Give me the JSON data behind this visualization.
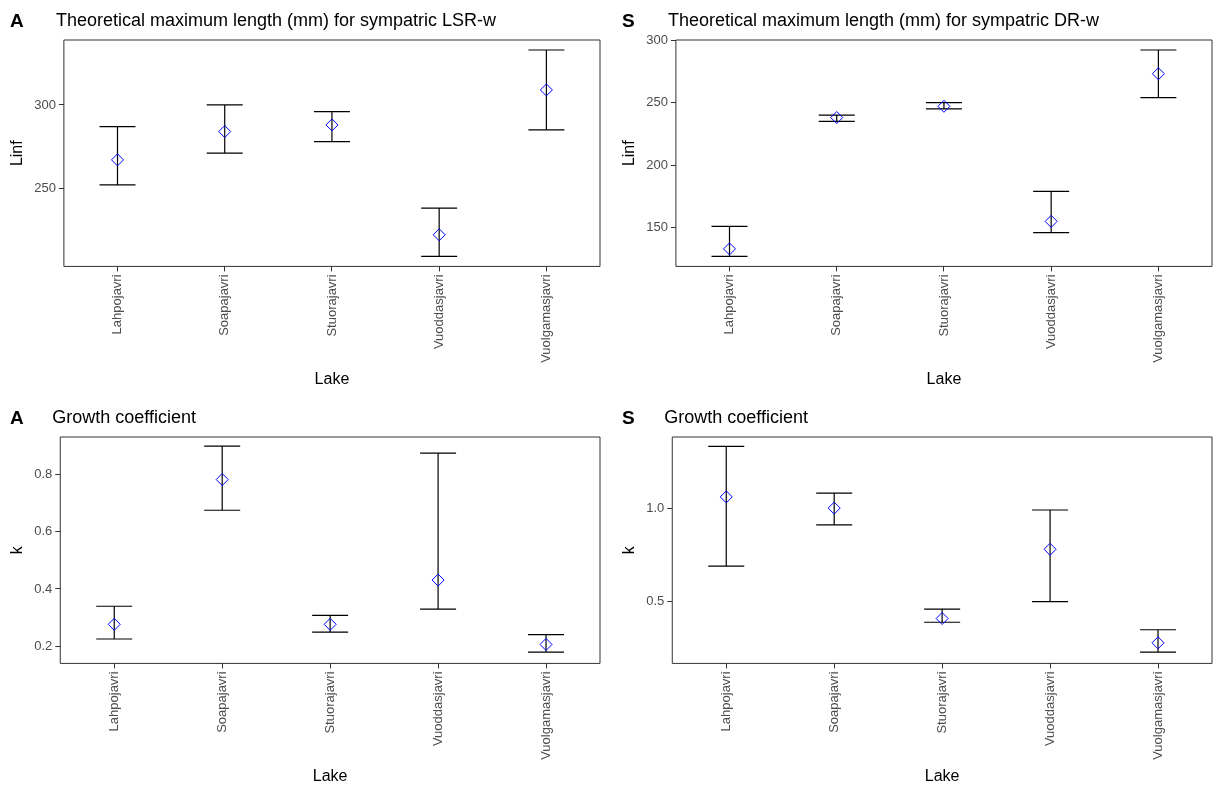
{
  "chart_data": [
    {
      "type": "scatter",
      "title": "Theoretical maximum length (mm) for sympatric LSR-w",
      "annotations": [
        "A"
      ],
      "xlabel": "Lake",
      "ylabel": "Linf",
      "categories": [
        "Lahpojavri",
        "Soapajavri",
        "Stuorajavri",
        "Vuoddasjavri",
        "Vuolgamasjavri"
      ],
      "series": [
        {
          "color": "#0000ff",
          "values": [
            267,
            284,
            288,
            222,
            309
          ],
          "errors": [
            [
              252,
              287
            ],
            [
              271,
              300
            ],
            [
              278,
              296
            ],
            [
              209,
              238
            ],
            [
              285,
              333
            ]
          ]
        }
      ],
      "ylim": [
        203,
        339
      ],
      "yticks": [
        250,
        300
      ],
      "grid": false,
      "legend": false,
      "marker": "diamond"
    },
    {
      "type": "scatter",
      "title": "Theoretical maximum length (mm) for sympatric DR-w",
      "annotations": [
        "S"
      ],
      "xlabel": "Lake",
      "ylabel": "Linf",
      "categories": [
        "Lahpojavri",
        "Soapajavri",
        "Stuorajavri",
        "Vuoddasjavri",
        "Vuolgamasjavri"
      ],
      "series": [
        {
          "color": "#0000ff",
          "values": [
            133,
            238,
            247,
            155,
            273
          ],
          "errors": [
            [
              127,
              151
            ],
            [
              235,
              240
            ],
            [
              245,
              250
            ],
            [
              146,
              179
            ],
            [
              254,
              292
            ]
          ]
        }
      ],
      "ylim": [
        119,
        300
      ],
      "yticks": [
        150,
        200,
        250,
        300
      ],
      "grid": false,
      "legend": false,
      "marker": "diamond"
    },
    {
      "type": "scatter",
      "title": "Growth coefficient",
      "annotations": [
        "A"
      ],
      "xlabel": "Lake",
      "ylabel": "k",
      "categories": [
        "Lahpojavri",
        "Soapajavri",
        "Stuorajavri",
        "Vuoddasjavri",
        "Vuolgamasjavri"
      ],
      "series": [
        {
          "color": "#0000ff",
          "values": [
            0.277,
            0.781,
            0.277,
            0.431,
            0.207
          ],
          "errors": [
            [
              0.226,
              0.34
            ],
            [
              0.674,
              0.897
            ],
            [
              0.25,
              0.308
            ],
            [
              0.33,
              0.873
            ],
            [
              0.18,
              0.241
            ]
          ]
        }
      ],
      "ylim": [
        0.141,
        0.929
      ],
      "yticks": [
        0.2,
        0.4,
        0.6,
        0.8
      ],
      "grid": false,
      "legend": false,
      "marker": "diamond"
    },
    {
      "type": "scatter",
      "title": "Growth coefficient",
      "annotations": [
        "S"
      ],
      "xlabel": "Lake",
      "ylabel": "k",
      "categories": [
        "Lahpojavri",
        "Soapajavri",
        "Stuorajavri",
        "Vuoddasjavri",
        "Vuolgamasjavri"
      ],
      "series": [
        {
          "color": "#0000ff",
          "values": [
            1.06,
            1.0,
            0.41,
            0.78,
            0.28
          ],
          "errors": [
            [
              0.69,
              1.33
            ],
            [
              0.91,
              1.08
            ],
            [
              0.39,
              0.46
            ],
            [
              0.5,
              0.99
            ],
            [
              0.23,
              0.35
            ]
          ]
        }
      ],
      "ylim": [
        0.17,
        1.38
      ],
      "yticks": [
        {
          "value": 0.5,
          "label": "0.5"
        },
        {
          "value": 1,
          "label": "1.0"
        }
      ],
      "grid": false,
      "legend": false,
      "marker": "diamond"
    }
  ]
}
